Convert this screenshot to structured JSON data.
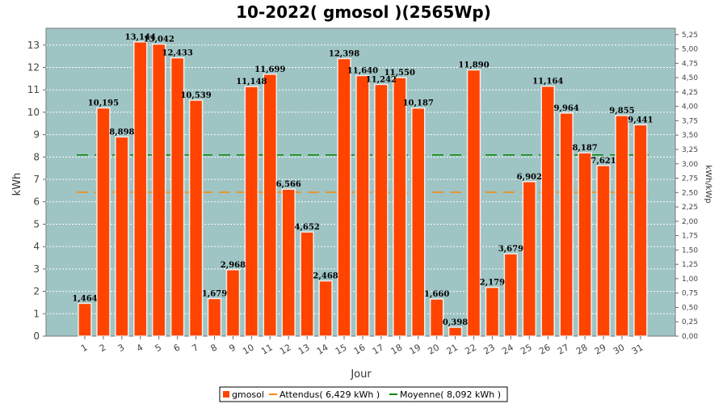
{
  "chart_data": {
    "type": "bar",
    "title": "10-2022( gmosol )(2565Wp)",
    "xlabel": "Jour",
    "ylabel": "kWh",
    "y2label": "kWh/kWp",
    "ylim": [
      0,
      13.75
    ],
    "y2lim": [
      0,
      5.36
    ],
    "yticks": [
      0,
      1,
      2,
      3,
      4,
      5,
      6,
      7,
      8,
      9,
      10,
      11,
      12,
      13
    ],
    "y2ticks": [
      "0,00",
      "0,25",
      "0,50",
      "0,75",
      "1,00",
      "1,25",
      "1,50",
      "1,75",
      "2,00",
      "2,25",
      "2,50",
      "2,75",
      "3,00",
      "3,25",
      "3,50",
      "3,75",
      "4,00",
      "4,25",
      "4,50",
      "4,75",
      "5,00",
      "5,25"
    ],
    "categories": [
      "1",
      "2",
      "3",
      "4",
      "5",
      "6",
      "7",
      "8",
      "9",
      "10",
      "11",
      "12",
      "13",
      "14",
      "15",
      "16",
      "17",
      "18",
      "19",
      "20",
      "21",
      "22",
      "23",
      "24",
      "25",
      "26",
      "27",
      "28",
      "29",
      "30",
      "31"
    ],
    "series": [
      {
        "name": "gmosol",
        "color": "#ff4400",
        "values": [
          1.464,
          10.195,
          8.898,
          13.144,
          13.042,
          12.433,
          10.539,
          1.679,
          2.968,
          11.148,
          11.699,
          6.566,
          4.652,
          2.468,
          12.398,
          11.64,
          11.242,
          11.55,
          10.187,
          1.66,
          0.398,
          11.89,
          2.179,
          3.679,
          6.902,
          11.164,
          9.964,
          8.187,
          7.621,
          9.855,
          9.441
        ],
        "labels": [
          "1,464",
          "10,195",
          "8,898",
          "13,144",
          "13,042",
          "12,433",
          "10,539",
          "1,679",
          "2,968",
          "11,148",
          "11,699",
          "6,566",
          "4,652",
          "2,468",
          "12,398",
          "11,640",
          "11,242",
          "11,550",
          "10,187",
          "1,660",
          "0,398",
          "11,890",
          "2,179",
          "3,679",
          "6,902",
          "11,164",
          "9,964",
          "8,187",
          "7,621",
          "9,855",
          "9,441"
        ]
      }
    ],
    "reference_lines": [
      {
        "name": "Attendus( 6,429 kWh )",
        "value": 6.429,
        "color": "#ff8800"
      },
      {
        "name": "Moyenne( 8,092 kWh )",
        "value": 8.092,
        "color": "#008800"
      }
    ],
    "plot_background": "#9fc4c4",
    "grid": true,
    "legend_position": "bottom"
  }
}
